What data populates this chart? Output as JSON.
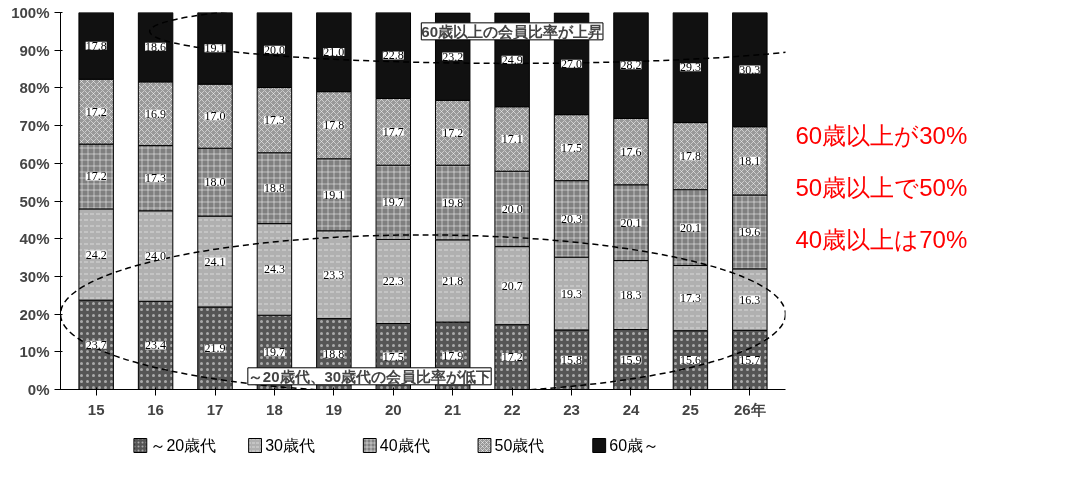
{
  "chart_data": {
    "type": "bar",
    "stacked": true,
    "categories": [
      "15",
      "16",
      "17",
      "18",
      "19",
      "20",
      "21",
      "22",
      "23",
      "24",
      "25",
      "26年"
    ],
    "series": [
      {
        "name": "～20歳代",
        "color": "#555555",
        "values": [
          23.7,
          23.4,
          21.9,
          19.7,
          18.8,
          17.5,
          17.9,
          17.2,
          15.8,
          15.9,
          15.6,
          15.7
        ],
        "value_labels": [
          "23.7",
          "23.4",
          "21.9",
          "19.7",
          "18.8",
          "17.5",
          "17.9",
          "17.2",
          "15.8",
          "15.9",
          "15.6",
          "15.7"
        ]
      },
      {
        "name": "30歳代",
        "color": "#b0b0b0",
        "values": [
          24.2,
          24.0,
          24.1,
          24.3,
          23.3,
          22.3,
          21.8,
          20.7,
          19.3,
          18.3,
          17.3,
          16.3
        ],
        "value_labels": [
          "24.2",
          "24.0",
          "24.1",
          "24.3",
          "23.3",
          "22.3",
          "21.8",
          "20.7",
          "19.3",
          "18.3",
          "17.3",
          "16.3"
        ]
      },
      {
        "name": "40歳代",
        "color": "#808080",
        "values": [
          17.2,
          17.3,
          18.0,
          18.8,
          19.1,
          19.7,
          19.8,
          20.0,
          20.3,
          20.1,
          20.1,
          19.6
        ],
        "value_labels": [
          "17.2",
          "17.3",
          "18.0",
          "18.8",
          "19.1",
          "19.7",
          "19.8",
          "20.0",
          "20.3",
          "20.1",
          "20.1",
          "19.6"
        ]
      },
      {
        "name": "50歳代",
        "color": "#999999",
        "values": [
          17.2,
          16.9,
          17.0,
          17.3,
          17.8,
          17.7,
          17.2,
          17.1,
          17.5,
          17.6,
          17.8,
          18.1
        ],
        "value_labels": [
          "17.2",
          "16.9",
          "17.0",
          "17.3",
          "17.8",
          "17.7",
          "17.2",
          "17.1",
          "17.5",
          "17.6",
          "17.8",
          "18.1"
        ]
      },
      {
        "name": "60歳～",
        "color": "#111111",
        "values": [
          17.8,
          18.6,
          19.1,
          20.0,
          21.0,
          22.8,
          23.2,
          24.9,
          27.0,
          28.2,
          29.3,
          30.3
        ],
        "value_labels": [
          "17.8",
          "18.6",
          "19.1",
          "20.0",
          "21.0",
          "22.8",
          "23.2",
          "24.9",
          "27.0",
          "28.2",
          "29.3",
          "30.3"
        ]
      }
    ],
    "ylim": [
      0,
      100
    ],
    "yticks": [
      {
        "value": 0,
        "label": "0%"
      },
      {
        "value": 10,
        "label": "10%"
      },
      {
        "value": 20,
        "label": "20%"
      },
      {
        "value": 30,
        "label": "30%"
      },
      {
        "value": 40,
        "label": "40%"
      },
      {
        "value": 50,
        "label": "50%"
      },
      {
        "value": 60,
        "label": "60%"
      },
      {
        "value": 70,
        "label": "70%"
      },
      {
        "value": 80,
        "label": "80%"
      },
      {
        "value": 90,
        "label": "90%"
      },
      {
        "value": 100,
        "label": "100%"
      }
    ],
    "legend": "bottom",
    "annotations": [
      "60歳以上の会員比率が上昇",
      "～20歳代、30歳代の会員比率が低下",
      "60歳以上が30%",
      "50歳以上で50%",
      "40歳以上は70%"
    ]
  }
}
